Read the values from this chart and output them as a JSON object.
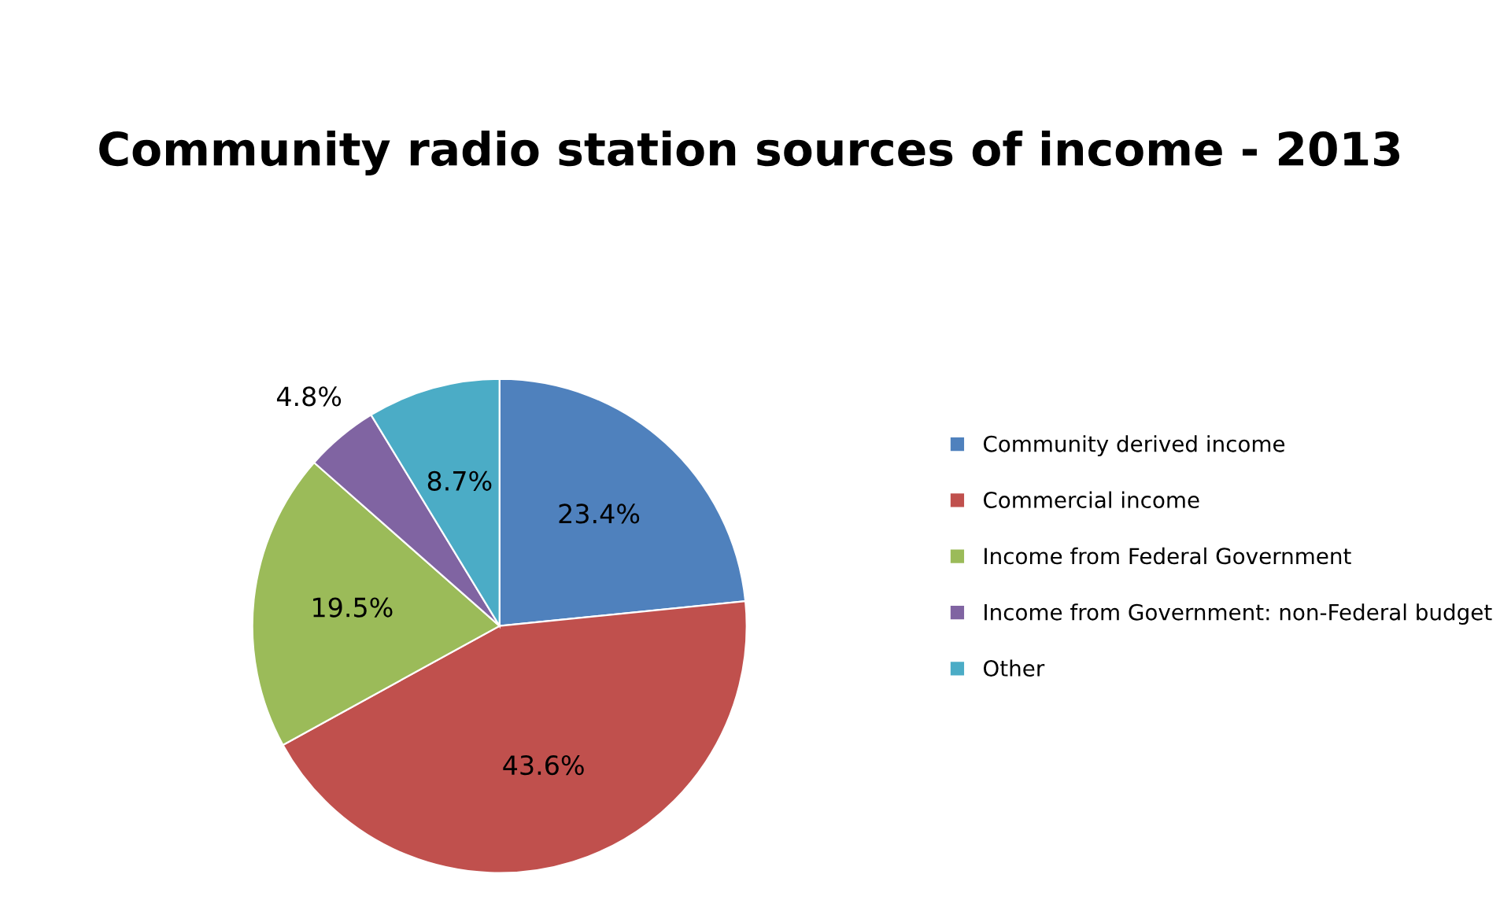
{
  "chart_data": {
    "type": "pie",
    "title": "Community radio station sources of income - 2013",
    "categories": [
      "Community derived income",
      "Commercial income",
      "Income from Federal Government",
      "Income from Government: non-Federal budget",
      "Other"
    ],
    "values": [
      23.4,
      43.6,
      19.5,
      4.8,
      8.7
    ],
    "colors": [
      "#4f81bd",
      "#c0504d",
      "#9bbb59",
      "#8064a2",
      "#4bacc6"
    ],
    "value_labels": [
      "23.4%",
      "43.6%",
      "19.5%",
      "4.8%",
      "8.7%"
    ],
    "legend": "right"
  }
}
